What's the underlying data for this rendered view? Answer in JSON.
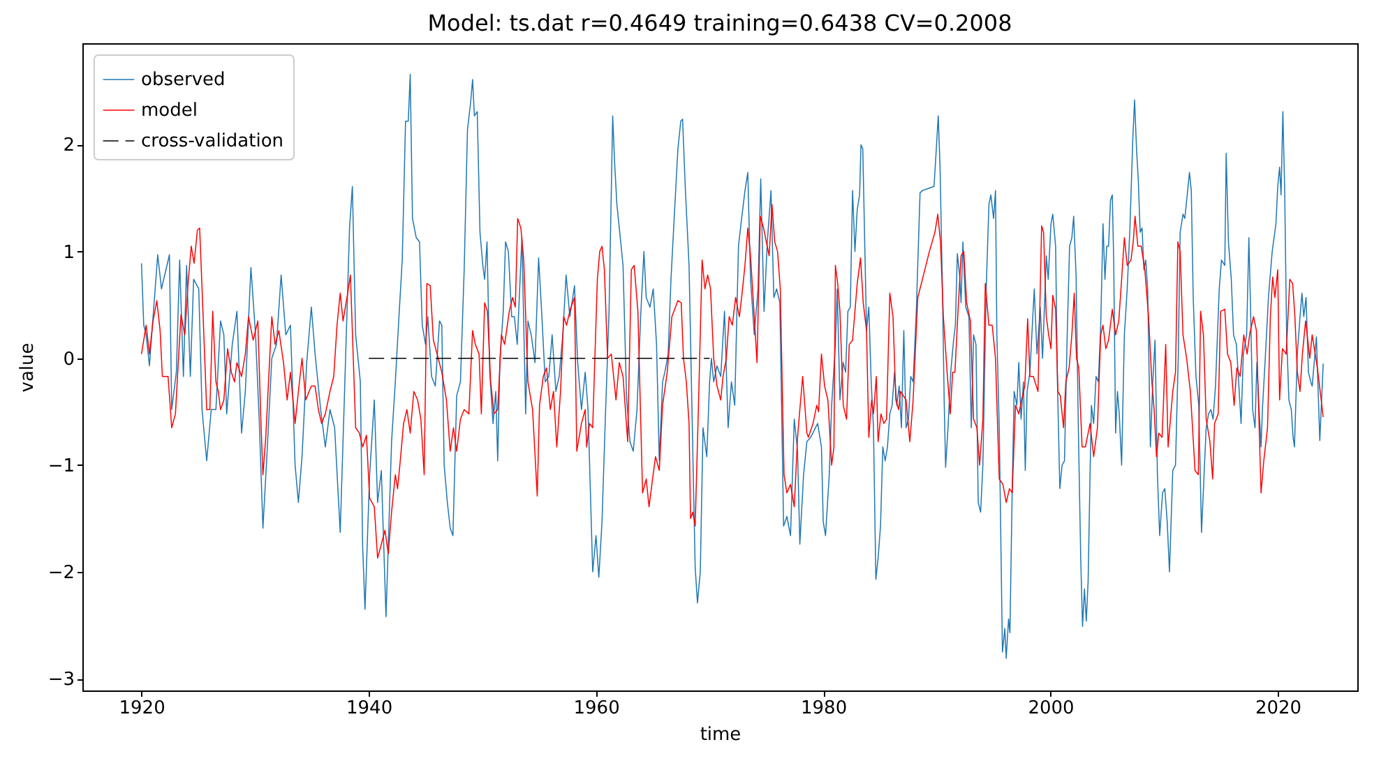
{
  "chart_data": {
    "type": "line",
    "title": "Model: ts.dat  r=0.4649  training=0.6438  CV=0.2008",
    "xlabel": "time",
    "ylabel": "value",
    "xlim": [
      1914.8,
      2027.0
    ],
    "ylim": [
      -3.11,
      2.95
    ],
    "xticks": [
      1920,
      1940,
      1960,
      1980,
      2000,
      2020
    ],
    "yticks": [
      -3,
      -2,
      -1,
      0,
      1,
      2
    ],
    "legend": "top left",
    "series": [
      {
        "name": "observed",
        "color": "#1f77b4",
        "line_style": "solid",
        "x": [
          1920.0,
          1920.2,
          1920.41,
          1920.7,
          1921.02,
          1921.43,
          1921.76,
          1922.46,
          1922.66,
          1923.07,
          1923.36,
          1923.69,
          1923.97,
          1924.3,
          1924.59,
          1925.04,
          1925.33,
          1925.74,
          1926.14,
          1926.55,
          1926.96,
          1927.25,
          1927.5,
          1927.99,
          1928.4,
          1928.81,
          1929.14,
          1929.63,
          1930.04,
          1930.36,
          1930.69,
          1931.06,
          1931.47,
          1931.88,
          1932.29,
          1932.7,
          1933.11,
          1933.52,
          1933.81,
          1934.13,
          1934.54,
          1934.95,
          1935.28,
          1935.77,
          1936.18,
          1936.59,
          1937.0,
          1937.49,
          1937.9,
          1938.31,
          1938.56,
          1938.85,
          1939.26,
          1939.46,
          1939.67,
          1940.08,
          1940.49,
          1940.78,
          1941.11,
          1941.52,
          1942.01,
          1942.34,
          1942.66,
          1942.95,
          1943.24,
          1943.48,
          1943.65,
          1943.85,
          1944.18,
          1944.47,
          1944.71,
          1945.0,
          1945.2,
          1945.53,
          1945.86,
          1946.23,
          1946.43,
          1946.64,
          1946.92,
          1947.17,
          1947.41,
          1947.74,
          1948.07,
          1948.4,
          1948.69,
          1948.97,
          1949.14,
          1949.3,
          1949.55,
          1949.79,
          1950.04,
          1950.2,
          1950.41,
          1950.65,
          1950.94,
          1951.18,
          1951.35,
          1951.55,
          1951.84,
          1952.04,
          1952.29,
          1952.58,
          1952.82,
          1953.07,
          1953.48,
          1953.81,
          1954.01,
          1954.3,
          1954.63,
          1954.95,
          1955.24,
          1955.53,
          1955.85,
          1956.14,
          1956.47,
          1956.76,
          1957.08,
          1957.37,
          1957.7,
          1958.11,
          1958.39,
          1958.72,
          1959.05,
          1959.3,
          1959.71,
          1960.0,
          1960.25,
          1960.53,
          1960.82,
          1961.15,
          1961.47,
          1961.64,
          1961.84,
          1962.09,
          1962.38,
          1962.7,
          1962.99,
          1963.28,
          1963.61,
          1963.93,
          1964.22,
          1964.42,
          1964.75,
          1965.04,
          1965.33,
          1965.57,
          1965.86,
          1966.06,
          1966.35,
          1966.6,
          1966.88,
          1967.21,
          1967.46,
          1967.62,
          1967.87,
          1968.19,
          1968.44,
          1968.73,
          1968.93,
          1969.18,
          1969.42,
          1969.75,
          1970.0,
          1970.16,
          1970.36,
          1970.65,
          1970.98,
          1971.31,
          1971.63,
          1971.92,
          1972.21,
          1972.54,
          1972.82,
          1973.11,
          1973.36,
          1973.6,
          1973.93,
          1974.26,
          1974.5,
          1974.79,
          1975.08,
          1975.4,
          1975.65,
          1975.9,
          1976.18,
          1976.51,
          1976.8,
          1977.12,
          1977.45,
          1977.74,
          1977.94,
          1978.27,
          1978.56,
          1978.89,
          1979.51,
          1979.84,
          1980.0,
          1980.2,
          1980.53,
          1980.74,
          1981.07,
          1981.23,
          1981.47,
          1981.76,
          1981.97,
          1982.17,
          1982.38,
          1982.58,
          1982.79,
          1982.99,
          1983.2,
          1983.32,
          1983.48,
          1983.81,
          1984.01,
          1984.22,
          1984.42,
          1984.63,
          1984.83,
          1985.04,
          1985.24,
          1985.45,
          1985.65,
          1985.86,
          1986.06,
          1986.27,
          1986.47,
          1986.68,
          1986.88,
          1987.09,
          1987.29,
          1987.5,
          1987.7,
          1987.91,
          1988.19,
          1988.52,
          1988.73,
          1989.75,
          1989.95,
          1990.12,
          1990.28,
          1990.49,
          1990.65,
          1990.77,
          1990.98,
          1991.22,
          1991.47,
          1991.63,
          1991.8,
          1992.0,
          1992.13,
          1992.29,
          1992.54,
          1992.82,
          1993.03,
          1993.23,
          1993.44,
          1993.64,
          1993.85,
          1994.05,
          1994.34,
          1994.58,
          1994.75,
          1994.99,
          1995.16,
          1995.28,
          1995.49,
          1995.77,
          1995.98,
          1996.1,
          1996.31,
          1996.43,
          1996.63,
          1996.8,
          1997.04,
          1997.21,
          1997.41,
          1997.62,
          1997.78,
          1997.94,
          1998.19,
          1998.57,
          1998.81,
          1999.1,
          1999.3,
          1999.63,
          1999.8,
          2000.04,
          2000.2,
          2000.45,
          2000.61,
          2000.82,
          2001.02,
          2001.23,
          2001.47,
          2001.68,
          2001.88,
          2002.04,
          2002.25,
          2002.45,
          2002.66,
          2002.82,
          2002.99,
          2003.15,
          2003.31,
          2003.48,
          2003.6,
          2003.8,
          2004.01,
          2004.21,
          2004.42,
          2004.62,
          2004.79,
          2004.95,
          2005.11,
          2005.28,
          2005.44,
          2005.56,
          2005.73,
          2005.89,
          2006.05,
          2006.26,
          2006.5,
          2006.75,
          2006.99,
          2007.24,
          2007.4,
          2007.57,
          2007.73,
          2007.89,
          2008.06,
          2008.22,
          2008.38,
          2008.55,
          2008.79,
          2009.0,
          2009.2,
          2009.41,
          2009.61,
          2009.86,
          2010.06,
          2010.27,
          2010.47,
          2010.76,
          2011.0,
          2011.25,
          2011.41,
          2011.66,
          2011.82,
          2012.07,
          2012.23,
          2012.39,
          2012.56,
          2012.8,
          2013.05,
          2013.29,
          2013.5,
          2013.7,
          2013.91,
          2014.11,
          2014.31,
          2014.52,
          2014.85,
          2015.05,
          2015.34,
          2015.46,
          2015.66,
          2015.91,
          2016.11,
          2016.36,
          2016.56,
          2016.77,
          2016.97,
          2017.26,
          2017.46,
          2017.63,
          2017.79,
          2018.0,
          2018.16,
          2018.36,
          2018.53,
          2018.65,
          2018.9,
          2019.18,
          2019.51,
          2019.84,
          2020.0,
          2020.16,
          2020.29,
          2020.45,
          2020.61,
          2020.78,
          2020.98,
          2021.19,
          2021.35,
          2021.47,
          2021.72,
          2021.96,
          2022.13,
          2022.29,
          2022.49,
          2022.7,
          2022.9,
          2023.03,
          2023.4,
          2023.7,
          2024.0
        ],
        "values": [
          0.89,
          0.31,
          0.22,
          -0.07,
          0.39,
          0.97,
          0.65,
          0.97,
          -0.48,
          -0.13,
          0.92,
          -0.17,
          0.87,
          -0.17,
          0.74,
          0.65,
          -0.48,
          -0.96,
          -0.48,
          -0.48,
          0.35,
          0.22,
          -0.52,
          0.13,
          0.44,
          -0.7,
          -0.31,
          0.85,
          0.22,
          -0.57,
          -1.59,
          -0.87,
          0,
          0.13,
          0.78,
          0.22,
          0.31,
          -1.0,
          -1.35,
          -0.92,
          -0.04,
          0.48,
          0.04,
          -0.48,
          -0.83,
          -0.48,
          -0.65,
          -1.63,
          -0.22,
          1.22,
          1.61,
          0.22,
          -0.22,
          -1.74,
          -2.35,
          -1.09,
          -0.39,
          -1.35,
          -1.05,
          -2.42,
          -0.78,
          -0.22,
          0.39,
          0.92,
          2.22,
          2.22,
          2.66,
          1.31,
          1.13,
          1.09,
          0.31,
          0.13,
          0.39,
          -0.17,
          -0.26,
          0.35,
          0.31,
          -1.0,
          -1.35,
          -1.59,
          -1.66,
          -0.35,
          -0.22,
          0.83,
          2.14,
          2.4,
          2.61,
          2.27,
          2.31,
          1.18,
          0.87,
          0.74,
          1.09,
          -0.13,
          -0.61,
          -0.31,
          -0.96,
          0,
          0.44,
          1.09,
          1.0,
          0.39,
          0.39,
          0.13,
          1.13,
          -0.52,
          0.35,
          0.22,
          -0.04,
          0.94,
          0.39,
          -0.22,
          -0.17,
          0.22,
          -0.31,
          -0.17,
          0.22,
          0.78,
          0.39,
          0.68,
          -0.04,
          -0.48,
          -0.13,
          -0.48,
          -2.0,
          -1.66,
          -2.05,
          -1.53,
          -0.57,
          0.44,
          2.27,
          1.83,
          1.44,
          1.18,
          0.87,
          -0.39,
          -0.78,
          -0.87,
          -0.48,
          0.39,
          1.0,
          0.57,
          0.48,
          0.65,
          0.13,
          -0.96,
          -0.22,
          -0.13,
          0.04,
          0.74,
          1.31,
          1.96,
          2.22,
          2.24,
          1.57,
          0.87,
          -0.44,
          -1.96,
          -2.29,
          -2.0,
          -0.65,
          -0.92,
          -0.22,
          0,
          -0.22,
          -0.07,
          -0.17,
          0.44,
          -0.65,
          -0.22,
          -0.44,
          1.05,
          1.31,
          1.57,
          1.74,
          0.74,
          0.22,
          0.65,
          1.68,
          0.44,
          1.09,
          1.57,
          0.57,
          0.65,
          0.52,
          -1.57,
          -1.48,
          -1.66,
          -0.57,
          -0.87,
          -1.74,
          -1.09,
          -0.78,
          -0.74,
          -0.61,
          -0.83,
          -1.53,
          -1.66,
          -1.09,
          -0.44,
          0.13,
          0.65,
          -0.39,
          -0.04,
          -0.13,
          0.44,
          0.48,
          1.57,
          1.0,
          1.39,
          1.53,
          2.0,
          1.96,
          0.26,
          0.48,
          -0.22,
          -0.65,
          -2.07,
          -1.87,
          -1.57,
          -0.83,
          -0.96,
          -0.83,
          -0.52,
          -0.44,
          -0.13,
          -0.44,
          -0.26,
          -0.65,
          0.26,
          -0.65,
          -0.57,
          -0.17,
          -0.22,
          0.44,
          1.55,
          1.57,
          1.61,
          1.96,
          2.27,
          1.79,
          0.65,
          -0.44,
          -1.02,
          -0.65,
          -0.13,
          0.17,
          0.31,
          0.98,
          0.78,
          0.52,
          1.09,
          0.48,
          0.39,
          -0.65,
          0.22,
          0.13,
          -1.35,
          -1.44,
          -1.0,
          0.65,
          1.44,
          1.53,
          1.31,
          1.57,
          0.22,
          -0.65,
          -2.75,
          -2.53,
          -2.81,
          -2.44,
          -2.57,
          -1.22,
          -0.31,
          -0.44,
          -0.04,
          -0.57,
          -0.22,
          -1.05,
          -0.31,
          -0.13,
          0.65,
          0.04,
          0.48,
          0,
          0.96,
          0.74,
          1.26,
          1.35,
          1.05,
          -0.22,
          -1.22,
          -1.0,
          -0.96,
          0.22,
          1.05,
          1.13,
          1.33,
          0.78,
          -0.65,
          -1.87,
          -2.51,
          -2.16,
          -2.46,
          -2.09,
          -1.09,
          -0.44,
          -0.61,
          -0.17,
          -0.22,
          0.31,
          1.26,
          0.74,
          1.05,
          1.05,
          1.48,
          1.53,
          0.92,
          -0.7,
          -0.31,
          -0.52,
          -1.0,
          0.22,
          0.65,
          1.22,
          2.05,
          2.42,
          1.96,
          1.66,
          1.18,
          1.22,
          0.83,
          0.92,
          0.65,
          -0.83,
          -0.22,
          0.17,
          -1.09,
          -1.66,
          -1.26,
          -1.22,
          -1.53,
          -2.0,
          -1.05,
          -1.0,
          0.04,
          1.18,
          1.35,
          1.31,
          1.57,
          1.74,
          1.57,
          0.57,
          -0.17,
          -0.44,
          -1.63,
          -1.13,
          -0.65,
          -0.52,
          -0.48,
          -0.57,
          -0.26,
          0.65,
          0.92,
          0.87,
          1.92,
          1.09,
          0.74,
          0.22,
          0.13,
          -0.22,
          -0.61,
          0.04,
          0.22,
          1.13,
          0.35,
          -0.48,
          -0.65,
          -0.04,
          -0.48,
          -0.83,
          -0.48,
          0,
          0.57,
          1.0,
          1.26,
          1.61,
          1.79,
          1.53,
          2.31,
          1.57,
          0.22,
          -0.39,
          -0.48,
          -0.74,
          -0.83,
          0.04,
          0.39,
          0.61,
          0.39,
          0.57,
          -0.13,
          -0.22,
          -0.26,
          0.2,
          -0.77,
          -0.05
        ]
      },
      {
        "name": "model",
        "color": "#ff0000",
        "line_style": "solid",
        "x": [
          1920.0,
          1920.41,
          1920.7,
          1921.02,
          1921.35,
          1921.64,
          1921.84,
          1922.34,
          1922.66,
          1922.99,
          1923.28,
          1923.48,
          1923.81,
          1924.1,
          1924.38,
          1924.63,
          1924.92,
          1925.12,
          1925.41,
          1925.74,
          1926.02,
          1926.27,
          1926.55,
          1926.76,
          1926.96,
          1927.25,
          1927.58,
          1927.91,
          1928.19,
          1928.4,
          1928.81,
          1929.14,
          1929.42,
          1929.83,
          1930.24,
          1930.53,
          1930.69,
          1930.94,
          1931.18,
          1931.47,
          1931.76,
          1932.09,
          1932.5,
          1932.82,
          1933.11,
          1933.52,
          1933.81,
          1934.13,
          1934.46,
          1934.75,
          1934.95,
          1935.28,
          1935.57,
          1935.85,
          1936.18,
          1936.59,
          1936.92,
          1937.21,
          1937.49,
          1937.74,
          1938.15,
          1938.39,
          1938.64,
          1938.85,
          1939.17,
          1939.47,
          1939.8,
          1940.08,
          1940.49,
          1940.78,
          1941.11,
          1941.43,
          1941.72,
          1942.01,
          1942.34,
          1942.54,
          1942.74,
          1943.07,
          1943.36,
          1943.65,
          1943.97,
          1944.3,
          1944.59,
          1944.88,
          1945.12,
          1945.41,
          1945.69,
          1946.02,
          1946.43,
          1946.84,
          1947.17,
          1947.46,
          1947.74,
          1948.07,
          1948.4,
          1948.81,
          1949.14,
          1949.38,
          1949.71,
          1949.91,
          1950.2,
          1950.45,
          1950.73,
          1951.02,
          1951.35,
          1951.68,
          1951.96,
          1952.37,
          1952.66,
          1952.9,
          1953.11,
          1953.39,
          1953.64,
          1954.01,
          1954.42,
          1954.83,
          1955.03,
          1955.36,
          1955.65,
          1955.98,
          1956.26,
          1956.55,
          1956.88,
          1957.16,
          1957.41,
          1957.74,
          1958.11,
          1958.31,
          1958.72,
          1959.05,
          1959.18,
          1959.43,
          1959.71,
          1960.12,
          1960.33,
          1960.53,
          1960.74,
          1961.02,
          1961.35,
          1961.76,
          1962.05,
          1962.38,
          1962.79,
          1963.11,
          1963.36,
          1963.69,
          1964.1,
          1964.42,
          1964.67,
          1964.92,
          1965.24,
          1965.57,
          1965.86,
          1966.27,
          1966.68,
          1967.21,
          1967.5,
          1967.7,
          1967.95,
          1968.19,
          1968.32,
          1968.52,
          1968.73,
          1969.01,
          1969.34,
          1969.59,
          1969.83,
          1970.08,
          1970.36,
          1970.65,
          1970.98,
          1971.18,
          1971.47,
          1971.72,
          1972.0,
          1972.29,
          1972.62,
          1972.86,
          1973.11,
          1973.36,
          1973.6,
          1973.93,
          1974.17,
          1974.46,
          1974.75,
          1974.99,
          1975.24,
          1975.49,
          1975.73,
          1975.98,
          1976.22,
          1976.55,
          1976.8,
          1977.12,
          1977.45,
          1977.74,
          1977.94,
          1978.19,
          1978.56,
          1978.69,
          1979.1,
          1979.43,
          1979.59,
          1979.84,
          1980.12,
          1980.41,
          1980.74,
          1980.94,
          1981.07,
          1981.27,
          1981.47,
          1981.76,
          1982.05,
          1982.29,
          1982.58,
          1982.99,
          1983.28,
          1983.52,
          1983.81,
          1984.01,
          1984.26,
          1984.42,
          1984.67,
          1984.83,
          1985.08,
          1985.33,
          1985.57,
          1985.86,
          1986.14,
          1986.39,
          1986.64,
          1986.8,
          1987.05,
          1987.29,
          1987.62,
          1987.91,
          1988.32,
          1988.73,
          1989.34,
          1989.83,
          1990.08,
          1990.32,
          1990.57,
          1990.9,
          1991.18,
          1991.39,
          1991.59,
          1991.88,
          1992.13,
          1992.37,
          1992.62,
          1992.95,
          1993.23,
          1993.52,
          1993.76,
          1994.05,
          1994.26,
          1994.58,
          1994.87,
          1995.16,
          1995.49,
          1995.81,
          1996.1,
          1996.39,
          1996.63,
          1996.92,
          1997.21,
          1997.45,
          1997.74,
          1997.99,
          1998.19,
          1998.49,
          1998.9,
          1999.22,
          1999.39,
          1999.63,
          1999.84,
          2000.04,
          2000.2,
          2000.45,
          2000.65,
          2000.86,
          2001.15,
          2001.35,
          2001.64,
          2001.88,
          2002.09,
          2002.29,
          2002.49,
          2002.78,
          2003.07,
          2003.48,
          2003.8,
          2004.13,
          2004.42,
          2004.62,
          2004.87,
          2005.11,
          2005.44,
          2005.73,
          2006.01,
          2006.26,
          2006.5,
          2006.75,
          2007.08,
          2007.28,
          2007.44,
          2007.69,
          2007.98,
          2008.3,
          2008.63,
          2008.92,
          2009.12,
          2009.33,
          2009.53,
          2009.82,
          2010.14,
          2010.35,
          2010.76,
          2011.0,
          2011.21,
          2011.41,
          2011.66,
          2011.98,
          2012.31,
          2012.72,
          2013.01,
          2013.21,
          2013.46,
          2013.7,
          2014.03,
          2014.27,
          2014.44,
          2014.76,
          2014.97,
          2015.34,
          2015.58,
          2015.87,
          2016.16,
          2016.4,
          2016.69,
          2017.01,
          2017.3,
          2017.55,
          2017.87,
          2018.12,
          2018.32,
          2018.53,
          2018.77,
          2019.1,
          2019.35,
          2019.55,
          2019.75,
          2020.0,
          2020.16,
          2020.41,
          2020.74,
          2021.06,
          2021.31,
          2021.51,
          2021.72,
          2021.96,
          2022.17,
          2022.45,
          2022.82,
          2023.03,
          2023.5,
          2024.0
        ],
        "values": [
          0.04,
          0.31,
          0.04,
          0.35,
          0.54,
          0.26,
          -0.17,
          -0.17,
          -0.65,
          -0.52,
          0.04,
          0.41,
          0.22,
          0.7,
          1.05,
          0.89,
          1.2,
          1.22,
          0.44,
          -0.48,
          -0.48,
          0.44,
          -0.22,
          -0.31,
          -0.48,
          -0.39,
          0.09,
          -0.13,
          -0.22,
          -0.04,
          -0.17,
          0.04,
          0.39,
          0.17,
          0.35,
          -0.65,
          -1.09,
          -0.74,
          -0.22,
          0.39,
          0.13,
          0.26,
          -0.04,
          -0.39,
          -0.13,
          -0.61,
          -0.31,
          0,
          -0.39,
          -0.31,
          -0.26,
          -0.26,
          -0.48,
          -0.61,
          -0.52,
          -0.31,
          -0.17,
          0.31,
          0.61,
          0.35,
          0.61,
          0.78,
          0,
          -0.65,
          -0.7,
          -0.83,
          -0.72,
          -1.31,
          -1.39,
          -1.87,
          -1.74,
          -1.61,
          -1.83,
          -1.44,
          -1.09,
          -1.22,
          -1.0,
          -0.61,
          -0.48,
          -0.7,
          -0.31,
          -0.39,
          -0.57,
          -1.09,
          0.7,
          0.68,
          0.17,
          0.04,
          -0.13,
          -0.39,
          -0.87,
          -0.65,
          -0.87,
          -0.57,
          -0.48,
          -0.52,
          0.26,
          0.13,
          0.04,
          -0.52,
          0.52,
          0.44,
          -0.22,
          -0.52,
          -0.48,
          0.22,
          0.13,
          0.44,
          0.57,
          0.48,
          1.31,
          1.22,
          0.92,
          -0.22,
          -0.48,
          -1.29,
          -0.44,
          -0.17,
          -0.09,
          -0.48,
          -0.31,
          -0.83,
          -0.31,
          0.39,
          0.31,
          0.46,
          0.57,
          -0.87,
          -0.61,
          -0.48,
          -0.83,
          -0.61,
          -0.65,
          0.74,
          1.0,
          1.05,
          0.83,
          0,
          0.04,
          -0.39,
          -0.04,
          -0.17,
          -0.78,
          0.83,
          0.87,
          0.44,
          -1.26,
          -1.13,
          -1.39,
          -1.18,
          -0.92,
          -1.05,
          -0.44,
          -0.13,
          0.39,
          0.54,
          0.52,
          0,
          -0.22,
          -0.61,
          -1.5,
          -1.44,
          -1.57,
          -0.48,
          0.92,
          0.65,
          0.78,
          0.65,
          0,
          -0.26,
          -0.39,
          -0.17,
          0,
          0.39,
          0.31,
          0.57,
          0.39,
          0.61,
          0.87,
          1.22,
          0.96,
          0.39,
          -0.04,
          1.33,
          1.22,
          1.09,
          0.96,
          1.44,
          1.09,
          1.0,
          0.65,
          -1.09,
          -1.26,
          -1.18,
          -1.39,
          -0.74,
          -0.48,
          -0.17,
          -0.7,
          -0.74,
          -0.61,
          -0.44,
          -0.5,
          0.04,
          -0.26,
          -0.39,
          -1.0,
          -0.83,
          0.87,
          0.7,
          0.44,
          -0.44,
          -0.57,
          0.13,
          0.17,
          0.7,
          0.94,
          0.52,
          0.26,
          -0.74,
          -0.39,
          -0.52,
          -0.17,
          -0.78,
          -0.52,
          -0.61,
          -0.57,
          0.61,
          0.39,
          -0.39,
          -0.48,
          -0.31,
          -0.35,
          -0.39,
          -0.78,
          -0.39,
          0.57,
          0.74,
          1.0,
          1.18,
          1.35,
          1.09,
          0.39,
          -0.13,
          -0.52,
          -0.13,
          -0.13,
          0.48,
          0.96,
          1.0,
          0.52,
          0.35,
          -0.57,
          -0.65,
          -1.0,
          -0.57,
          0.7,
          0.31,
          0.31,
          0,
          -1.13,
          -1.18,
          -1.35,
          -1.22,
          -1.26,
          -0.44,
          -0.52,
          -0.39,
          -0.26,
          0.37,
          -0.17,
          -0.17,
          -0.31,
          1.24,
          1.18,
          0.39,
          0.22,
          0.09,
          0.59,
          0.46,
          -0.31,
          -0.35,
          -0.65,
          -0.22,
          -0.09,
          0.22,
          0.61,
          0,
          -0.09,
          -0.83,
          -0.83,
          -0.61,
          -0.92,
          -0.65,
          0.22,
          0.31,
          0.09,
          0.17,
          0.46,
          0.22,
          0.35,
          0.74,
          1.13,
          0.87,
          0.92,
          1.09,
          1.33,
          1.05,
          1.05,
          0.83,
          0.39,
          -0.22,
          -0.48,
          -0.92,
          -0.7,
          -0.74,
          0.13,
          -0.83,
          -0.31,
          -0.13,
          1.09,
          1.0,
          0.22,
          0,
          -0.31,
          -1.05,
          -1.09,
          0.44,
          0.22,
          -0.57,
          -0.78,
          -1.13,
          -0.61,
          -0.52,
          0.44,
          0.46,
          0.04,
          -0.04,
          -0.44,
          -0.09,
          -0.17,
          0.22,
          0.04,
          0.24,
          0.39,
          0.26,
          -0.48,
          -1.26,
          -0.96,
          -0.65,
          0.39,
          0.76,
          0.57,
          0.83,
          -0.39,
          0.09,
          0.04,
          0.74,
          0.7,
          0.39,
          -0.13,
          -0.31,
          0.04,
          0.35,
          0,
          0.22,
          -0.1,
          -0.55
        ]
      },
      {
        "name": "cross-validation",
        "color": "#000000",
        "line_style": "dashed",
        "x": [
          1940,
          1970
        ],
        "values": [
          0,
          0
        ]
      }
    ]
  }
}
